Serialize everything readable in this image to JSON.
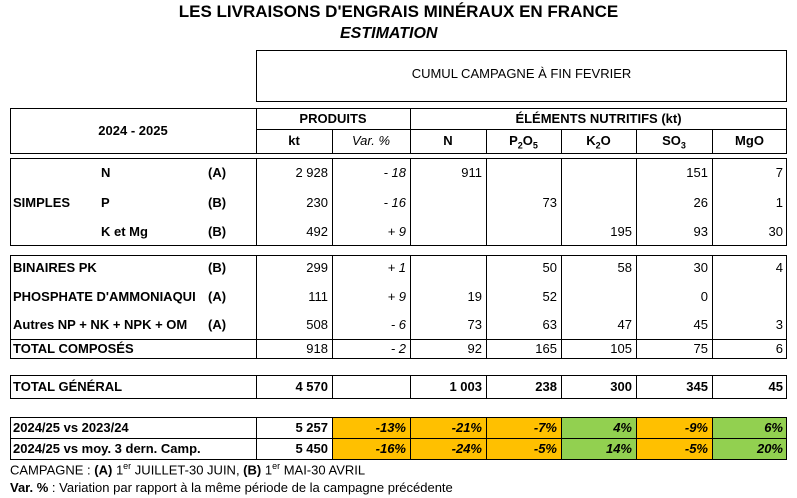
{
  "title": "LES LIVRAISONS D'ENGRAIS MINÉRAUX EN FRANCE",
  "subtitle": "ESTIMATION",
  "period_header": "CUMUL CAMPAGNE À FIN FEVRIER",
  "season": "2024 - 2025",
  "headers": {
    "produits": "PRODUITS",
    "elements": "ÉLÉMENTS NUTRITIFS (kt)",
    "kt": "kt",
    "var": "Var. %",
    "n": "N",
    "p2o5": "P2O5",
    "k2o": "K2O",
    "so3": "SO3",
    "mgo": "MgO"
  },
  "simples_label": "SIMPLES",
  "rows": [
    {
      "label": "N",
      "code": "(A)",
      "kt": "2 928",
      "var": "- 18",
      "n": "911",
      "p2o5": "",
      "k2o": "",
      "so3": "151",
      "mgo": "7"
    },
    {
      "label": "P",
      "code": "(B)",
      "kt": "230",
      "var": "- 16",
      "n": "",
      "p2o5": "73",
      "k2o": "",
      "so3": "26",
      "mgo": "1"
    },
    {
      "label": "K et Mg",
      "code": "(B)",
      "kt": "492",
      "var": "+ 9",
      "n": "",
      "p2o5": "",
      "k2o": "195",
      "so3": "93",
      "mgo": "30"
    },
    {
      "label": "BINAIRES PK",
      "code": "(B)",
      "kt": "299",
      "var": "+ 1",
      "n": "",
      "p2o5": "50",
      "k2o": "58",
      "so3": "30",
      "mgo": "4"
    },
    {
      "label": "PHOSPHATE D'AMMONIAQUI",
      "code": "(A)",
      "kt": "111",
      "var": "+ 9",
      "n": "19",
      "p2o5": "52",
      "k2o": "",
      "so3": "0",
      "mgo": ""
    },
    {
      "label": "Autres NP + NK + NPK + OM",
      "code": "(A)",
      "kt": "508",
      "var": "- 6",
      "n": "73",
      "p2o5": "63",
      "k2o": "47",
      "so3": "45",
      "mgo": "3"
    },
    {
      "label": "TOTAL COMPOSÉS",
      "code": "",
      "kt": "918",
      "var": "- 2",
      "n": "92",
      "p2o5": "165",
      "k2o": "105",
      "so3": "75",
      "mgo": "6"
    }
  ],
  "total": {
    "label": "TOTAL GÉNÉRAL",
    "kt": "4 570",
    "n": "1 003",
    "p2o5": "238",
    "k2o": "300",
    "so3": "345",
    "mgo": "45"
  },
  "comparisons": [
    {
      "label": "2024/25 vs 2023/24",
      "kt": "5 257",
      "var": "-13%",
      "n": "-21%",
      "p2o5": "-7%",
      "k2o": "4%",
      "so3": "-9%",
      "mgo": "6%"
    },
    {
      "label": "2024/25 vs moy. 3 dern. Camp.",
      "kt": "5 450",
      "var": "-16%",
      "n": "-24%",
      "p2o5": "-5%",
      "k2o": "14%",
      "so3": "-5%",
      "mgo": "20%"
    }
  ],
  "colors": {
    "negative": "#ffc000",
    "positive": "#92d050"
  },
  "footnote1": {
    "prefix": "CAMPAGNE : ",
    "a": "(A)",
    "a_sup": "er",
    "a_text": " JUILLET-30 JUIN, ",
    "b": "(B)",
    "b_sup": "er",
    "b_text": " MAI-30 AVRIL"
  },
  "footnote2": {
    "prefix": "Var. %",
    "text": " : Variation par rapport à la même période de la campagne précédente"
  }
}
